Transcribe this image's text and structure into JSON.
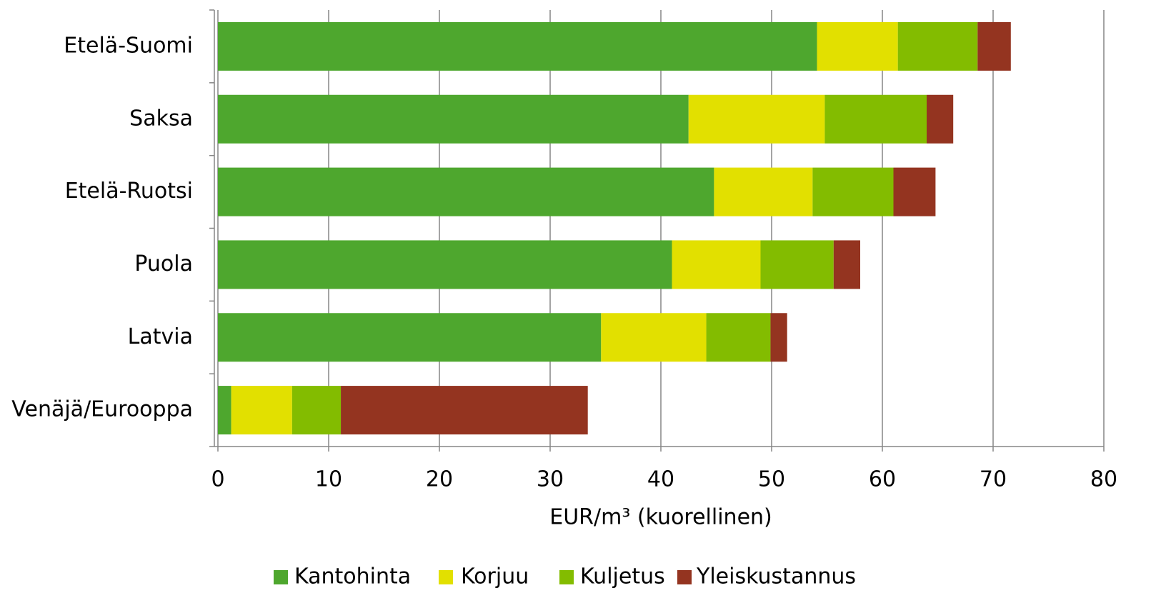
{
  "chart_data": {
    "type": "stacked-bar-horizontal",
    "categories": [
      "Etelä-Suomi",
      "Saksa",
      "Etelä-Ruotsi",
      "Puola",
      "Latvia",
      "Venäjä/Eurooppa"
    ],
    "series": [
      {
        "name": "Kantohinta",
        "color": "#4ea72e",
        "values": [
          54.1,
          42.5,
          44.8,
          41.0,
          34.6,
          1.2
        ]
      },
      {
        "name": "Korjuu",
        "color": "#e2e000",
        "values": [
          7.3,
          12.3,
          8.9,
          8.0,
          9.5,
          5.5
        ]
      },
      {
        "name": "Kuljetus",
        "color": "#83bc00",
        "values": [
          7.2,
          9.2,
          7.3,
          6.6,
          5.8,
          4.4
        ]
      },
      {
        "name": "Yleiskustannus",
        "color": "#943420",
        "values": [
          3.0,
          2.4,
          3.8,
          2.4,
          1.5,
          22.3
        ]
      }
    ],
    "xlabel": "EUR/m³ (kuorellinen)",
    "xlim": [
      0,
      80
    ],
    "xticks": [
      0,
      10,
      20,
      30,
      40,
      50,
      60,
      70,
      80
    ],
    "grid": true
  }
}
